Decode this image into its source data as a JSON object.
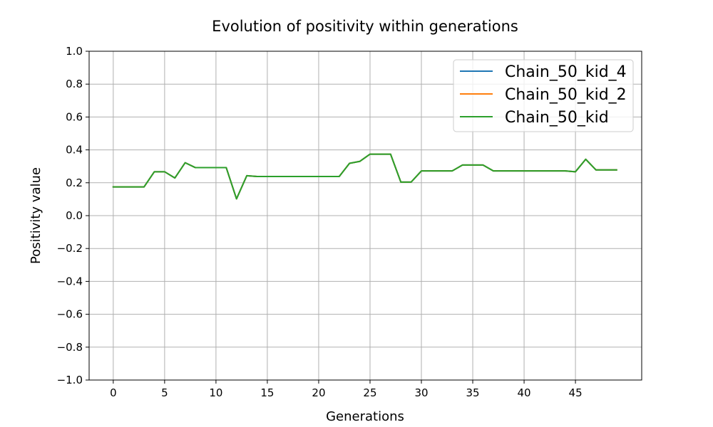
{
  "chart_data": {
    "type": "line",
    "title": "Evolution of positivity within generations",
    "xlabel": "Generations",
    "ylabel": "Positivity value",
    "xlim": [
      -2.35,
      51.45
    ],
    "ylim": [
      -1.0,
      1.0
    ],
    "xticks": [
      0,
      5,
      10,
      15,
      20,
      25,
      30,
      35,
      40,
      45
    ],
    "xtick_labels": [
      "0",
      "5",
      "10",
      "15",
      "20",
      "25",
      "30",
      "35",
      "40",
      "45"
    ],
    "yticks": [
      -1.0,
      -0.8,
      -0.6,
      -0.4,
      -0.2,
      0.0,
      0.2,
      0.4,
      0.6,
      0.8,
      1.0
    ],
    "ytick_labels": [
      "−1.0",
      "−0.8",
      "−0.6",
      "−0.4",
      "−0.2",
      "0.0",
      "0.2",
      "0.4",
      "0.6",
      "0.8",
      "1.0"
    ],
    "grid": true,
    "legend_position": "top-right",
    "x": [
      0,
      1,
      2,
      3,
      4,
      5,
      6,
      7,
      8,
      9,
      10,
      11,
      12,
      13,
      14,
      15,
      16,
      17,
      18,
      19,
      20,
      21,
      22,
      23,
      24,
      25,
      26,
      27,
      28,
      29,
      30,
      31,
      32,
      33,
      34,
      35,
      36,
      37,
      38,
      39,
      40,
      41,
      42,
      43,
      44,
      45,
      46,
      47,
      48,
      49
    ],
    "series": [
      {
        "name": "Chain_50_kid_4",
        "color": "#1f77b4",
        "values": [
          0.175,
          0.175,
          0.175,
          0.175,
          0.267,
          0.267,
          0.229,
          0.322,
          0.292,
          0.292,
          0.292,
          0.292,
          0.102,
          0.243,
          0.238,
          0.238,
          0.238,
          0.238,
          0.238,
          0.238,
          0.238,
          0.238,
          0.238,
          0.318,
          0.33,
          0.374,
          0.374,
          0.374,
          0.204,
          0.204,
          0.272,
          0.272,
          0.272,
          0.272,
          0.308,
          0.308,
          0.308,
          0.272,
          0.272,
          0.272,
          0.272,
          0.272,
          0.272,
          0.272,
          0.272,
          0.267,
          0.343,
          0.278,
          0.278,
          0.278
        ]
      },
      {
        "name": "Chain_50_kid_2",
        "color": "#ff7f0e",
        "values": [
          0.175,
          0.175,
          0.175,
          0.175,
          0.267,
          0.267,
          0.229,
          0.322,
          0.292,
          0.292,
          0.292,
          0.292,
          0.102,
          0.243,
          0.238,
          0.238,
          0.238,
          0.238,
          0.238,
          0.238,
          0.238,
          0.238,
          0.238,
          0.318,
          0.33,
          0.374,
          0.374,
          0.374,
          0.204,
          0.204,
          0.272,
          0.272,
          0.272,
          0.272,
          0.308,
          0.308,
          0.308,
          0.272,
          0.272,
          0.272,
          0.272,
          0.272,
          0.272,
          0.272,
          0.272,
          0.267,
          0.343,
          0.278,
          0.278,
          0.278
        ]
      },
      {
        "name": "Chain_50_kid",
        "color": "#2ca02c",
        "values": [
          0.175,
          0.175,
          0.175,
          0.175,
          0.267,
          0.267,
          0.229,
          0.322,
          0.292,
          0.292,
          0.292,
          0.292,
          0.102,
          0.243,
          0.238,
          0.238,
          0.238,
          0.238,
          0.238,
          0.238,
          0.238,
          0.238,
          0.238,
          0.318,
          0.33,
          0.374,
          0.374,
          0.374,
          0.204,
          0.204,
          0.272,
          0.272,
          0.272,
          0.272,
          0.308,
          0.308,
          0.308,
          0.272,
          0.272,
          0.272,
          0.272,
          0.272,
          0.272,
          0.272,
          0.272,
          0.267,
          0.343,
          0.278,
          0.278,
          0.278
        ]
      }
    ]
  }
}
